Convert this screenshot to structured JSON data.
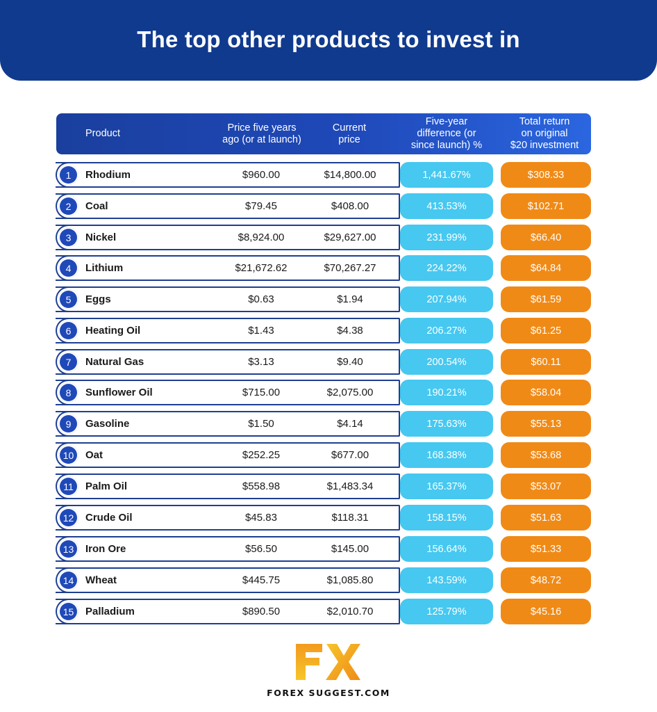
{
  "title": "The top other products to invest in",
  "colors": {
    "banner": "#103a8e",
    "header": "#1f49b9",
    "row_border": "#1e3f91",
    "percent_pill": "#46c8f0",
    "return_pill": "#f08a16",
    "logo_gold": "#f3b21c"
  },
  "chart_data": {
    "type": "table",
    "columns": [
      "Product",
      "Price five years\nago (or at launch)",
      "Current\nprice",
      "Five-year\ndifference (or\nsince launch) %",
      "Total return\non original\n$20 investment"
    ],
    "rows": [
      {
        "rank": "1",
        "product": "Rhodium",
        "price_5y": "$960.00",
        "current": "$14,800.00",
        "diff_pct": "1,441.67%",
        "total_return": "$308.33"
      },
      {
        "rank": "2",
        "product": "Coal",
        "price_5y": "$79.45",
        "current": "$408.00",
        "diff_pct": "413.53%",
        "total_return": "$102.71"
      },
      {
        "rank": "3",
        "product": "Nickel",
        "price_5y": "$8,924.00",
        "current": "$29,627.00",
        "diff_pct": "231.99%",
        "total_return": "$66.40"
      },
      {
        "rank": "4",
        "product": "Lithium",
        "price_5y": "$21,672.62",
        "current": "$70,267.27",
        "diff_pct": "224.22%",
        "total_return": "$64.84"
      },
      {
        "rank": "5",
        "product": "Eggs",
        "price_5y": "$0.63",
        "current": "$1.94",
        "diff_pct": "207.94%",
        "total_return": "$61.59"
      },
      {
        "rank": "6",
        "product": "Heating Oil",
        "price_5y": "$1.43",
        "current": "$4.38",
        "diff_pct": "206.27%",
        "total_return": "$61.25"
      },
      {
        "rank": "7",
        "product": "Natural Gas",
        "price_5y": "$3.13",
        "current": "$9.40",
        "diff_pct": "200.54%",
        "total_return": "$60.11"
      },
      {
        "rank": "8",
        "product": "Sunflower Oil",
        "price_5y": "$715.00",
        "current": "$2,075.00",
        "diff_pct": "190.21%",
        "total_return": "$58.04"
      },
      {
        "rank": "9",
        "product": "Gasoline",
        "price_5y": "$1.50",
        "current": "$4.14",
        "diff_pct": "175.63%",
        "total_return": "$55.13"
      },
      {
        "rank": "10",
        "product": "Oat",
        "price_5y": "$252.25",
        "current": "$677.00",
        "diff_pct": "168.38%",
        "total_return": "$53.68"
      },
      {
        "rank": "11",
        "product": "Palm Oil",
        "price_5y": "$558.98",
        "current": "$1,483.34",
        "diff_pct": "165.37%",
        "total_return": "$53.07"
      },
      {
        "rank": "12",
        "product": "Crude Oil",
        "price_5y": "$45.83",
        "current": "$118.31",
        "diff_pct": "158.15%",
        "total_return": "$51.63"
      },
      {
        "rank": "13",
        "product": "Iron Ore",
        "price_5y": "$56.50",
        "current": "$145.00",
        "diff_pct": "156.64%",
        "total_return": "$51.33"
      },
      {
        "rank": "14",
        "product": "Wheat",
        "price_5y": "$445.75",
        "current": "$1,085.80",
        "diff_pct": "143.59%",
        "total_return": "$48.72"
      },
      {
        "rank": "15",
        "product": "Palladium",
        "price_5y": "$890.50",
        "current": "$2,010.70",
        "diff_pct": "125.79%",
        "total_return": "$45.16"
      }
    ]
  },
  "logo": {
    "mark": "FX",
    "icon": "fx-logo-icon"
  },
  "footer": {
    "brand": "FOREX SUGGEST.COM"
  }
}
